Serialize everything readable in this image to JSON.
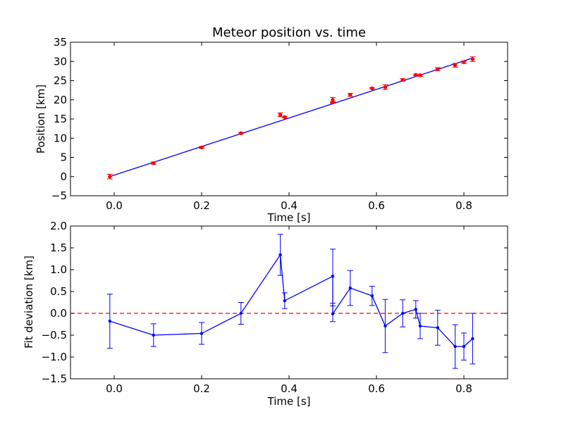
{
  "chart_data": [
    {
      "type": "scatter",
      "title": "Meteor position vs. time",
      "xlabel": "Time [s]",
      "ylabel": "Position [km]",
      "xlim": [
        -0.1,
        0.9
      ],
      "ylim": [
        -5,
        35
      ],
      "xticks": [
        0.0,
        0.2,
        0.4,
        0.6,
        0.8
      ],
      "yticks": [
        -5,
        0,
        5,
        10,
        15,
        20,
        25,
        30,
        35
      ],
      "xtick_labels": [
        "0.0",
        "0.2",
        "0.4",
        "0.6",
        "0.8"
      ],
      "ytick_labels": [
        "−5",
        "0",
        "5",
        "10",
        "15",
        "20",
        "25",
        "30",
        "35"
      ],
      "grid": false,
      "fit_line": {
        "x": [
          -0.01,
          0.82
        ],
        "y": [
          0.0,
          30.9
        ],
        "color": "#0000ff"
      },
      "points": {
        "color": "#ff0000",
        "x": [
          -0.01,
          0.09,
          0.2,
          0.29,
          0.38,
          0.39,
          0.5,
          0.5,
          0.54,
          0.59,
          0.62,
          0.66,
          0.69,
          0.7,
          0.74,
          0.78,
          0.8,
          0.82
        ],
        "y": [
          0.0,
          3.5,
          7.6,
          11.3,
          16.1,
          15.5,
          20.0,
          19.3,
          21.3,
          23.0,
          23.3,
          25.2,
          26.5,
          26.4,
          28.0,
          29.0,
          29.8,
          30.6
        ],
        "err": [
          0.6,
          0.3,
          0.2,
          0.2,
          0.5,
          0.2,
          0.6,
          0.2,
          0.4,
          0.2,
          0.6,
          0.3,
          0.2,
          0.3,
          0.4,
          0.5,
          0.3,
          0.6
        ]
      }
    },
    {
      "type": "line",
      "title": "",
      "xlabel": "Time [s]",
      "ylabel": "Fit deviation [km]",
      "xlim": [
        -0.1,
        0.9
      ],
      "ylim": [
        -1.5,
        2.0
      ],
      "xticks": [
        0.0,
        0.2,
        0.4,
        0.6,
        0.8
      ],
      "yticks": [
        -1.5,
        -1.0,
        -0.5,
        0.0,
        0.5,
        1.0,
        1.5,
        2.0
      ],
      "xtick_labels": [
        "0.0",
        "0.2",
        "0.4",
        "0.6",
        "0.8"
      ],
      "ytick_labels": [
        "−1.5",
        "−1.0",
        "−0.5",
        "0.0",
        "0.5",
        "1.0",
        "1.5",
        "2.0"
      ],
      "grid": false,
      "reference_line": {
        "y": 0.0,
        "style": "dashed",
        "color": "#ff0000"
      },
      "series": {
        "color": "#0000ff",
        "x": [
          -0.01,
          0.09,
          0.2,
          0.29,
          0.38,
          0.39,
          0.5,
          0.5,
          0.54,
          0.59,
          0.62,
          0.66,
          0.69,
          0.7,
          0.74,
          0.78,
          0.8,
          0.82
        ],
        "y": [
          -0.18,
          -0.5,
          -0.46,
          0.0,
          1.34,
          0.29,
          0.85,
          -0.01,
          0.58,
          0.4,
          -0.29,
          0.0,
          0.09,
          -0.29,
          -0.33,
          -0.76,
          -0.76,
          -0.58
        ],
        "err": [
          0.62,
          0.26,
          0.25,
          0.25,
          0.47,
          0.18,
          0.62,
          0.18,
          0.4,
          0.22,
          0.61,
          0.31,
          0.2,
          0.29,
          0.4,
          0.5,
          0.31,
          0.58
        ]
      }
    }
  ]
}
